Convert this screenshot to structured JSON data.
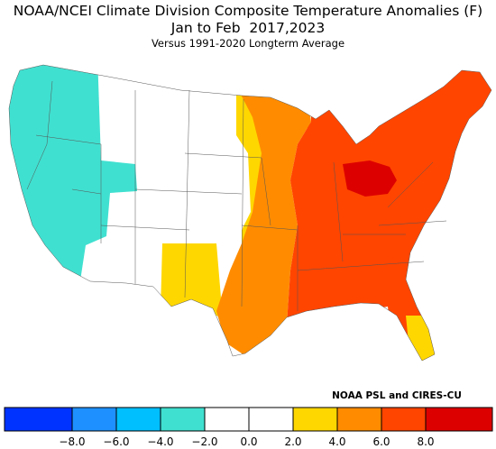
{
  "header": {
    "title": "NOAA/NCEI Climate Division Composite Temperature Anomalies (F)",
    "period": "Jan to Feb  2017,2023",
    "baseline": "Versus 1991-2020 Longterm Average"
  },
  "footer": {
    "credit": "NOAA PSL and CIRES-CU"
  },
  "colorbar": {
    "colors": [
      "#0033ff",
      "#1e90ff",
      "#00bfff",
      "#40e0d0",
      "#ffffff",
      "#ffffff",
      "#ffd700",
      "#ff8c00",
      "#ff4500",
      "#dd0000"
    ],
    "labels": [
      "−8.0",
      "−6.0",
      "−4.0",
      "−2.0",
      "0.0",
      "2.0",
      "4.0",
      "6.0",
      "8.0"
    ]
  }
}
